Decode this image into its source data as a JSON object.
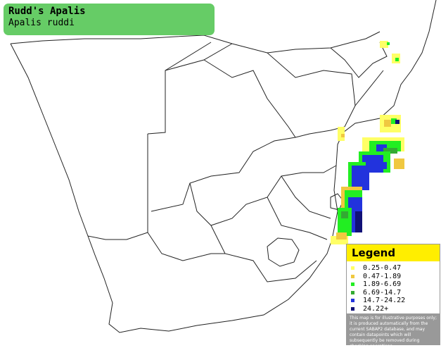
{
  "header": {
    "title": "Rudd's Apalis",
    "subtitle": "Apalis ruddi"
  },
  "legend": {
    "title": "Legend",
    "items": [
      {
        "label": "0.25-0.47",
        "color": "#ffff66"
      },
      {
        "label": "0.47-1.89",
        "color": "#f0c840"
      },
      {
        "label": "1.89-6.69",
        "color": "#22ee22"
      },
      {
        "label": "6.69-14.7",
        "color": "#33aa33"
      },
      {
        "label": "14.7-24.22",
        "color": "#2233dd"
      },
      {
        "label": "24.22+",
        "color": "#111177"
      }
    ],
    "note": "This map is for illustrative purposes only; it is produced automatically from the current SABAP2 database, and may contain datapoints which will subsequently be removed during checking operations."
  }
}
